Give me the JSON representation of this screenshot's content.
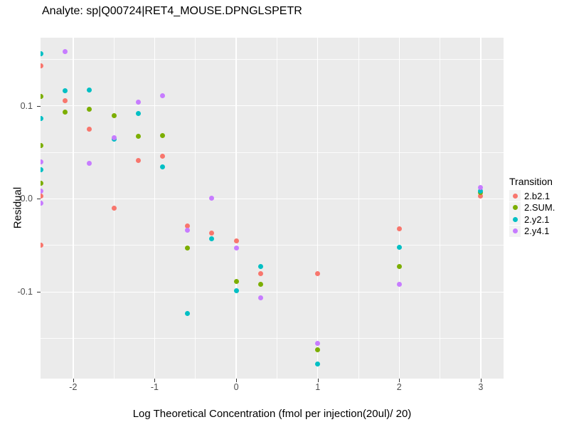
{
  "chart_data": {
    "type": "scatter",
    "title": "Analyte: sp|Q00724|RET4_MOUSE.DPNGLSPETR",
    "xlabel": "Log Theoretical Concentration (fmol per injection(20ul)/ 20)",
    "ylabel": "Residual",
    "legend_title": "Transition",
    "legend_position": "right",
    "grid": true,
    "panel_bg": "#EBEBEB",
    "grid_color": "#FFFFFF",
    "tick_text_color": "#4D4D4D",
    "xlim": [
      -2.4,
      3.28
    ],
    "ylim": [
      -0.193,
      0.173
    ],
    "x_tick_values": [
      -2,
      -1,
      0,
      1,
      2,
      3
    ],
    "x_tick_labels": [
      "-2",
      "-1",
      "0",
      "1",
      "2",
      "3"
    ],
    "y_tick_values": [
      0.1,
      0.0,
      -0.1
    ],
    "y_tick_labels": [
      "0.1",
      "0.0",
      "-0.1"
    ],
    "x_minor_values": [
      -1.5,
      -0.5,
      0.5,
      1.5,
      2.5
    ],
    "y_minor_values": [
      0.15,
      0.05,
      -0.05,
      -0.15
    ],
    "series": [
      {
        "name": "2.b2.1",
        "color": "#F8766D",
        "points": [
          [
            -2.4,
            0.143
          ],
          [
            -2.4,
            0.003
          ],
          [
            -2.4,
            -0.05
          ],
          [
            -2.1,
            0.105
          ],
          [
            -1.8,
            0.075
          ],
          [
            -1.5,
            -0.01
          ],
          [
            -1.2,
            0.041
          ],
          [
            -0.9,
            0.046
          ],
          [
            -0.6,
            -0.029
          ],
          [
            -0.3,
            -0.037
          ],
          [
            0.0,
            -0.045
          ],
          [
            0.3,
            -0.08
          ],
          [
            1.0,
            -0.08
          ],
          [
            2.0,
            -0.032
          ],
          [
            3.0,
            0.003
          ]
        ]
      },
      {
        "name": "2.SUM.",
        "color": "#7CAE00",
        "points": [
          [
            -2.4,
            0.11
          ],
          [
            -2.4,
            0.057
          ],
          [
            -2.4,
            0.017
          ],
          [
            -2.1,
            0.093
          ],
          [
            -1.8,
            0.096
          ],
          [
            -1.5,
            0.089
          ],
          [
            -1.2,
            0.067
          ],
          [
            -0.9,
            0.068
          ],
          [
            -0.6,
            -0.053
          ],
          [
            0.0,
            -0.089
          ],
          [
            0.3,
            -0.092
          ],
          [
            1.0,
            -0.162
          ],
          [
            2.0,
            -0.073
          ],
          [
            3.0,
            0.007
          ]
        ]
      },
      {
        "name": "2.y2.1",
        "color": "#00BFC4",
        "points": [
          [
            -2.4,
            0.156
          ],
          [
            -2.4,
            0.086
          ],
          [
            -2.4,
            0.031
          ],
          [
            -2.1,
            0.116
          ],
          [
            -1.8,
            0.117
          ],
          [
            -1.5,
            0.064
          ],
          [
            -1.2,
            0.092
          ],
          [
            -0.9,
            0.034
          ],
          [
            -0.6,
            -0.123
          ],
          [
            -0.3,
            -0.043
          ],
          [
            0.0,
            -0.099
          ],
          [
            0.3,
            -0.073
          ],
          [
            1.0,
            -0.177
          ],
          [
            2.0,
            -0.052
          ],
          [
            3.0,
            0.008
          ]
        ]
      },
      {
        "name": "2.y4.1",
        "color": "#C77CFF",
        "points": [
          [
            -2.4,
            0.04
          ],
          [
            -2.4,
            0.008
          ],
          [
            -2.4,
            -0.005
          ],
          [
            -2.1,
            0.158
          ],
          [
            -1.8,
            0.038
          ],
          [
            -1.5,
            0.066
          ],
          [
            -1.2,
            0.104
          ],
          [
            -0.9,
            0.111
          ],
          [
            -0.6,
            -0.034
          ],
          [
            -0.3,
            0.001
          ],
          [
            0.0,
            -0.053
          ],
          [
            0.3,
            -0.106
          ],
          [
            1.0,
            -0.155
          ],
          [
            2.0,
            -0.092
          ],
          [
            3.0,
            0.012
          ]
        ]
      }
    ]
  }
}
